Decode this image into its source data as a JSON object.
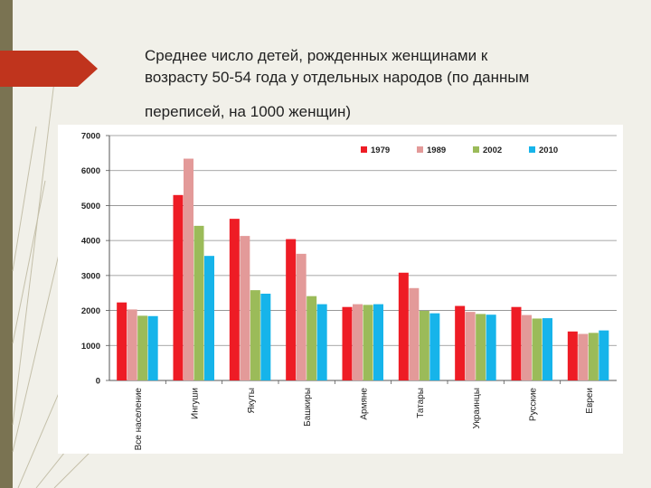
{
  "slide": {
    "title_line1": "Среднее число детей, рожденных женщинами к",
    "title_line2": "возрасту 50-54 года у отдельных народов (по данным",
    "title_line3": "переписей, на 1000 женщин)"
  },
  "colors": {
    "background": "#f1f0e9",
    "left_bar": "#7a7352",
    "arrow": "#c0341d"
  },
  "chart_data": {
    "type": "bar",
    "categories": [
      "Все население",
      "Ингуши",
      "Якуты",
      "Башкиры",
      "Армяне",
      "Татары",
      "Украинцы",
      "Русские",
      "Евреи"
    ],
    "series": [
      {
        "name": "1979",
        "color": "#ee1c25",
        "values": [
          2230,
          5300,
          4620,
          4040,
          2100,
          3080,
          2130,
          2100,
          1400
        ]
      },
      {
        "name": "1989",
        "color": "#e39a99",
        "values": [
          2030,
          6340,
          4130,
          3620,
          2180,
          2640,
          1960,
          1870,
          1330
        ]
      },
      {
        "name": "2002",
        "color": "#9bbb59",
        "values": [
          1850,
          4420,
          2580,
          2410,
          2160,
          1990,
          1900,
          1770,
          1360
        ]
      },
      {
        "name": "2010",
        "color": "#16b4ea",
        "values": [
          1840,
          3560,
          2480,
          2180,
          2180,
          1920,
          1880,
          1780,
          1430
        ]
      }
    ],
    "yticks": [
      "0",
      "1000",
      "2000",
      "3000",
      "4000",
      "5000",
      "6000",
      "7000"
    ],
    "ylim": [
      0,
      7000
    ],
    "grid": true,
    "legend_position": "top-right",
    "title": "",
    "xlabel": "",
    "ylabel": ""
  }
}
